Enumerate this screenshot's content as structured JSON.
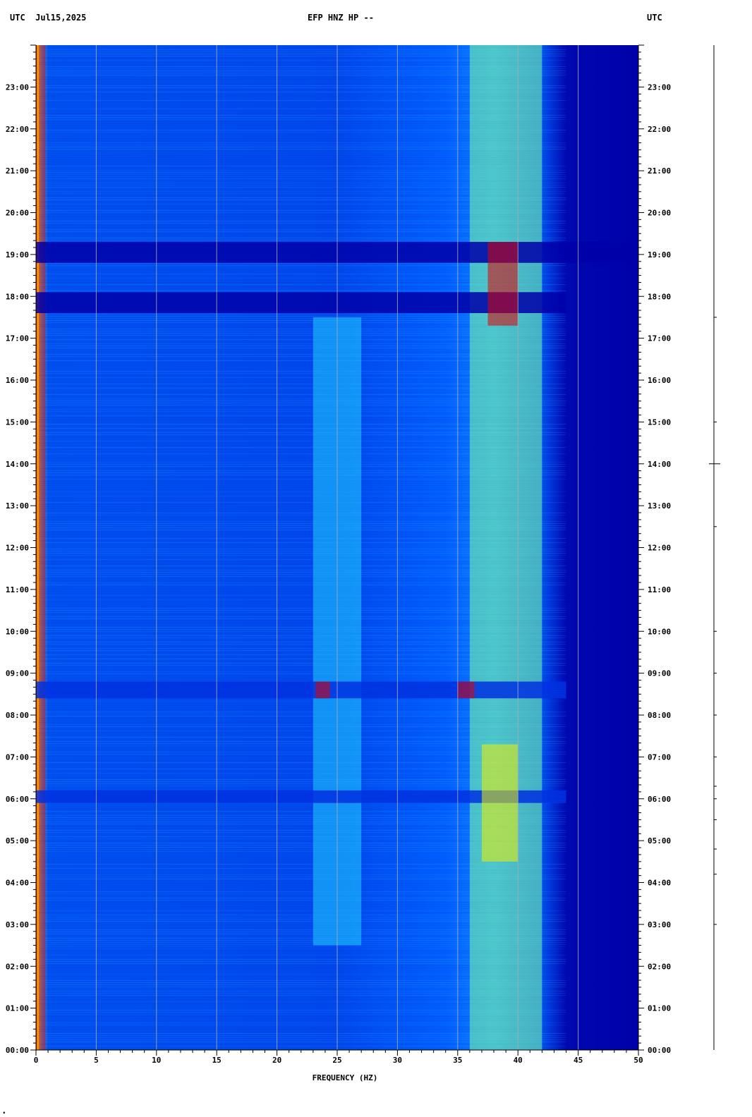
{
  "header": {
    "left": "UTC  Jul15,2025",
    "center": "EFP HNZ HP --",
    "right": "UTC"
  },
  "chart_data": {
    "type": "heatmap",
    "title": "EFP HNZ HP --",
    "date": "Jul15,2025",
    "timezone": "UTC",
    "xlabel": "FREQUENCY (HZ)",
    "xlim": [
      0,
      50
    ],
    "x_major_ticks": [
      0,
      5,
      10,
      15,
      20,
      25,
      30,
      35,
      40,
      45,
      50
    ],
    "x_minor_step": 1,
    "y_ticks_hours": [
      0,
      1,
      2,
      3,
      4,
      5,
      6,
      7,
      8,
      9,
      10,
      11,
      12,
      13,
      14,
      15,
      16,
      17,
      18,
      19,
      20,
      21,
      22,
      23
    ],
    "y_tick_labels": [
      "00:00",
      "01:00",
      "02:00",
      "03:00",
      "04:00",
      "05:00",
      "06:00",
      "07:00",
      "08:00",
      "09:00",
      "10:00",
      "11:00",
      "12:00",
      "13:00",
      "14:00",
      "15:00",
      "16:00",
      "17:00",
      "18:00",
      "19:00",
      "20:00",
      "21:00",
      "22:00",
      "23:00"
    ],
    "ylim_hours": [
      0,
      24
    ],
    "grid": true,
    "colormap": [
      "#0000a8",
      "#0030e0",
      "#0080ff",
      "#20d0ff",
      "#80ffa0",
      "#f0f000",
      "#ff8000",
      "#e00000"
    ],
    "rolloff_frequency_hz": 44,
    "features": [
      {
        "label": "strong band near 0.5 Hz",
        "freq": [
          0.2,
          0.8
        ],
        "hours": [
          0,
          24
        ],
        "level": 0.95
      },
      {
        "label": "broad energy 36-42 Hz",
        "freq": [
          36,
          42
        ],
        "hours": [
          0,
          24
        ],
        "level": 0.6
      },
      {
        "label": "band 23-27 Hz",
        "freq": [
          23,
          27
        ],
        "hours": [
          2.5,
          17.5
        ],
        "level": 0.45
      },
      {
        "label": "quiet interval",
        "freq": [
          0,
          44
        ],
        "hours": [
          17.6,
          18.1
        ],
        "level": 0.05
      },
      {
        "label": "quiet interval",
        "freq": [
          0,
          50
        ],
        "hours": [
          18.8,
          19.3
        ],
        "level": 0.05
      },
      {
        "label": "quiet interval",
        "freq": [
          0,
          44
        ],
        "hours": [
          8.4,
          8.8
        ],
        "level": 0.08
      },
      {
        "label": "quiet interval",
        "freq": [
          0,
          44
        ],
        "hours": [
          5.9,
          6.2
        ],
        "level": 0.08
      },
      {
        "label": "drifting line",
        "freq": [
          37.5,
          40
        ],
        "hours": [
          17.3,
          19.3
        ],
        "level": 0.95
      },
      {
        "label": "burst",
        "freq": [
          23.2,
          24.4
        ],
        "hours": [
          8.4,
          8.8
        ],
        "level": 0.95
      },
      {
        "label": "burst",
        "freq": [
          35,
          36.4
        ],
        "hours": [
          8.4,
          8.8
        ],
        "level": 0.95
      },
      {
        "label": "burst",
        "freq": [
          37,
          40
        ],
        "hours": [
          4.5,
          7.3
        ],
        "level": 0.75
      }
    ]
  },
  "bottom_mark": "♦"
}
